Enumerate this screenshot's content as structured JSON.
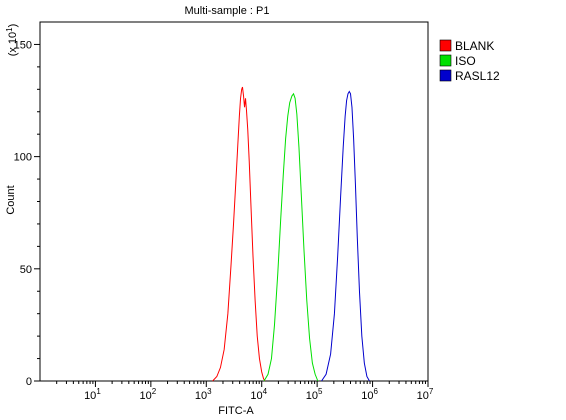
{
  "chart_data": {
    "type": "line",
    "title": "Multi-sample : P1",
    "xlabel": "FITC-A",
    "ylabel": "Count",
    "y_multiplier_label": {
      "prefix": "(x 10",
      "exp": "1",
      "suffix": ")"
    },
    "x_scale": "log",
    "xlim": [
      1,
      10000000
    ],
    "ylim": [
      0,
      160
    ],
    "x_ticks": [
      {
        "base": "10",
        "exp": "1",
        "value": 10
      },
      {
        "base": "10",
        "exp": "2",
        "value": 100
      },
      {
        "base": "10",
        "exp": "3",
        "value": 1000
      },
      {
        "base": "10",
        "exp": "4",
        "value": 10000
      },
      {
        "base": "10",
        "exp": "5",
        "value": 100000
      },
      {
        "base": "10",
        "exp": "6",
        "value": 1000000
      },
      {
        "base": "10",
        "exp": "7",
        "value": 10000000
      }
    ],
    "y_ticks": [
      {
        "label": "0",
        "value": 0
      },
      {
        "label": "50",
        "value": 50
      },
      {
        "label": "100",
        "value": 100
      },
      {
        "label": "150",
        "value": 150
      }
    ],
    "grid": false,
    "legend_position": "top-right",
    "series": [
      {
        "name": "BLANK",
        "color": "#ff0000",
        "points": [
          [
            1300,
            0
          ],
          [
            1550,
            2
          ],
          [
            1800,
            6
          ],
          [
            2100,
            14
          ],
          [
            2450,
            30
          ],
          [
            2800,
            52
          ],
          [
            3100,
            70
          ],
          [
            3400,
            88
          ],
          [
            3700,
            105
          ],
          [
            3950,
            118
          ],
          [
            4150,
            126
          ],
          [
            4350,
            130
          ],
          [
            4500,
            131
          ],
          [
            4700,
            127
          ],
          [
            4900,
            122
          ],
          [
            5100,
            126
          ],
          [
            5300,
            121
          ],
          [
            5600,
            112
          ],
          [
            5950,
            98
          ],
          [
            6400,
            78
          ],
          [
            6950,
            56
          ],
          [
            7600,
            36
          ],
          [
            8300,
            20
          ],
          [
            9100,
            10
          ],
          [
            10000,
            4
          ],
          [
            10800,
            1
          ],
          [
            11500,
            0
          ]
        ]
      },
      {
        "name": "ISO",
        "color": "#00e000",
        "points": [
          [
            11000,
            0
          ],
          [
            13000,
            3
          ],
          [
            15000,
            10
          ],
          [
            17000,
            25
          ],
          [
            19500,
            48
          ],
          [
            22000,
            72
          ],
          [
            24500,
            92
          ],
          [
            27000,
            108
          ],
          [
            29500,
            118
          ],
          [
            32000,
            124
          ],
          [
            35000,
            127
          ],
          [
            37500,
            128
          ],
          [
            40000,
            126
          ],
          [
            43000,
            119
          ],
          [
            47000,
            104
          ],
          [
            52000,
            82
          ],
          [
            58000,
            58
          ],
          [
            65000,
            36
          ],
          [
            73000,
            19
          ],
          [
            82000,
            8
          ],
          [
            92000,
            3
          ],
          [
            103000,
            0
          ]
        ]
      },
      {
        "name": "RASL12",
        "color": "#0000cc",
        "points": [
          [
            120000,
            0
          ],
          [
            145000,
            3
          ],
          [
            175000,
            12
          ],
          [
            205000,
            30
          ],
          [
            235000,
            56
          ],
          [
            265000,
            82
          ],
          [
            295000,
            104
          ],
          [
            320000,
            118
          ],
          [
            340000,
            125
          ],
          [
            360000,
            128
          ],
          [
            380000,
            129
          ],
          [
            400000,
            128
          ],
          [
            425000,
            122
          ],
          [
            455000,
            108
          ],
          [
            490000,
            88
          ],
          [
            530000,
            64
          ],
          [
            580000,
            40
          ],
          [
            640000,
            20
          ],
          [
            710000,
            8
          ],
          [
            790000,
            2
          ],
          [
            880000,
            0
          ]
        ]
      }
    ]
  }
}
